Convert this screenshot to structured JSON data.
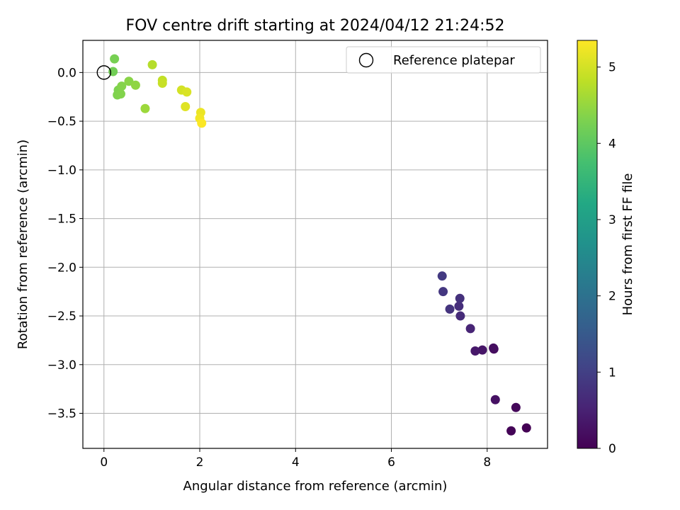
{
  "chart_data": {
    "type": "scatter",
    "title": "FOV centre drift starting at 2024/04/12 21:24:52",
    "xlabel": "Angular distance from reference (arcmin)",
    "ylabel": "Rotation from reference (arcmin)",
    "xlim": [
      -0.44,
      9.26
    ],
    "ylim": [
      -3.86,
      0.33
    ],
    "xticks": [
      0,
      2,
      4,
      6,
      8
    ],
    "yticks": [
      0.0,
      -0.5,
      -1.0,
      -1.5,
      -2.0,
      -2.5,
      -3.0,
      -3.5
    ],
    "grid": true,
    "legend": {
      "placement": "top-right",
      "entries": [
        "Reference platepar"
      ]
    },
    "reference_point": {
      "x": 0,
      "y": 0,
      "label": "Reference platepar"
    },
    "colorbar": {
      "label": "Hours from first FF file",
      "colormap": "viridis",
      "range": [
        0,
        5.35
      ],
      "ticks": [
        0,
        1,
        2,
        3,
        4,
        5
      ]
    },
    "points": [
      {
        "x": 8.82,
        "y": -3.65,
        "t": 0.0
      },
      {
        "x": 8.5,
        "y": -3.68,
        "t": 0.05
      },
      {
        "x": 8.6,
        "y": -3.44,
        "t": 0.1
      },
      {
        "x": 8.17,
        "y": -3.36,
        "t": 0.25
      },
      {
        "x": 8.14,
        "y": -2.84,
        "t": 0.15
      },
      {
        "x": 8.13,
        "y": -2.83,
        "t": 0.2
      },
      {
        "x": 7.9,
        "y": -2.85,
        "t": 0.3
      },
      {
        "x": 7.75,
        "y": -2.86,
        "t": 0.35
      },
      {
        "x": 7.65,
        "y": -2.63,
        "t": 0.55
      },
      {
        "x": 7.44,
        "y": -2.5,
        "t": 0.65
      },
      {
        "x": 7.41,
        "y": -2.4,
        "t": 0.7
      },
      {
        "x": 7.43,
        "y": -2.32,
        "t": 0.75
      },
      {
        "x": 7.22,
        "y": -2.43,
        "t": 0.8
      },
      {
        "x": 7.08,
        "y": -2.25,
        "t": 0.85
      },
      {
        "x": 7.06,
        "y": -2.09,
        "t": 0.9
      },
      {
        "x": 0.19,
        "y": 0.01,
        "t": 4.2
      },
      {
        "x": 0.22,
        "y": 0.14,
        "t": 4.25
      },
      {
        "x": 0.3,
        "y": -0.18,
        "t": 4.3
      },
      {
        "x": 0.28,
        "y": -0.23,
        "t": 4.32
      },
      {
        "x": 0.35,
        "y": -0.22,
        "t": 4.34
      },
      {
        "x": 0.37,
        "y": -0.14,
        "t": 4.36
      },
      {
        "x": 0.52,
        "y": -0.09,
        "t": 4.4
      },
      {
        "x": 0.66,
        "y": -0.13,
        "t": 4.45
      },
      {
        "x": 0.86,
        "y": -0.37,
        "t": 4.55
      },
      {
        "x": 1.01,
        "y": 0.08,
        "t": 4.75
      },
      {
        "x": 1.22,
        "y": -0.08,
        "t": 4.85
      },
      {
        "x": 1.22,
        "y": -0.11,
        "t": 4.9
      },
      {
        "x": 1.62,
        "y": -0.18,
        "t": 5.0
      },
      {
        "x": 1.73,
        "y": -0.2,
        "t": 5.05
      },
      {
        "x": 1.7,
        "y": -0.35,
        "t": 5.1
      },
      {
        "x": 2.02,
        "y": -0.41,
        "t": 5.2
      },
      {
        "x": 2.0,
        "y": -0.47,
        "t": 5.25
      },
      {
        "x": 2.04,
        "y": -0.52,
        "t": 5.33
      }
    ]
  }
}
